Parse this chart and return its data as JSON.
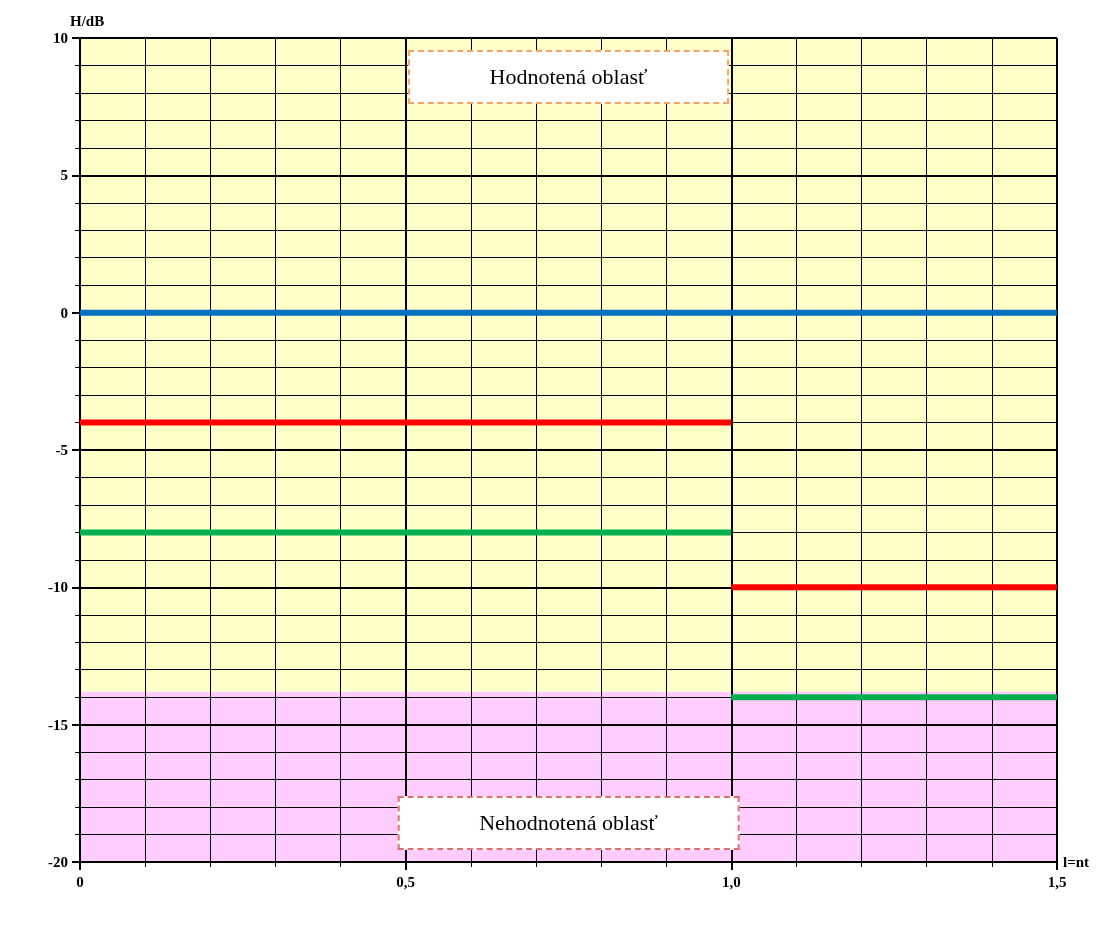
{
  "chart_data": {
    "type": "line",
    "xlabel": "l=nt",
    "ylabel": "H/dB",
    "xlim": [
      0,
      1.5
    ],
    "ylim": [
      -20,
      10
    ],
    "xticks": [
      0,
      {
        "value": 0.5,
        "label": "0,5"
      },
      {
        "value": 1.0,
        "label": "1,0"
      },
      {
        "value": 1.5,
        "label": "1,5"
      }
    ],
    "yticks": [
      -20,
      -15,
      -10,
      -5,
      0,
      5,
      10
    ],
    "grid": true,
    "marker": "none",
    "line_style": "solid",
    "series": [
      {
        "color": "#0070c0",
        "x": [
          0,
          1.5
        ],
        "values": [
          0,
          0
        ]
      },
      {
        "color": "#ff0000",
        "x": [
          0,
          1.0
        ],
        "values": [
          -4,
          -4
        ]
      },
      {
        "color": "#00b050",
        "x": [
          0,
          1.0
        ],
        "values": [
          -8,
          -8
        ]
      },
      {
        "color": "#ff0000",
        "x": [
          1.0,
          1.5
        ],
        "values": [
          -10,
          -10
        ]
      },
      {
        "color": "#00b050",
        "x": [
          1.0,
          1.5
        ],
        "values": [
          -14,
          -14
        ]
      }
    ],
    "bands": [
      {
        "axis": "y",
        "from": -13.8,
        "to": 10,
        "label": "Hodnotená oblasť",
        "color": "#ffffc8"
      },
      {
        "axis": "y",
        "from": -20,
        "to": -13.8,
        "label": "Nehodnotená oblasť",
        "color": "#ffccff"
      }
    ]
  }
}
